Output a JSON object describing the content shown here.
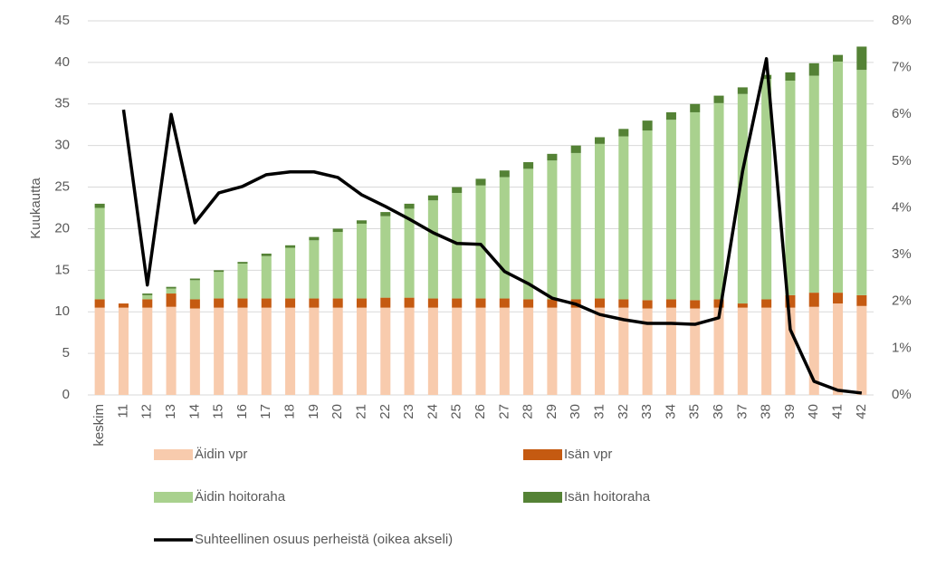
{
  "chart_data": {
    "type": "bar",
    "y_label": "Kuukautta",
    "categories": [
      "keskim",
      "11",
      "12",
      "13",
      "14",
      "15",
      "16",
      "17",
      "18",
      "19",
      "20",
      "21",
      "22",
      "23",
      "24",
      "25",
      "26",
      "27",
      "28",
      "29",
      "30",
      "31",
      "32",
      "33",
      "34",
      "35",
      "36",
      "37",
      "38",
      "39",
      "40",
      "41",
      "42"
    ],
    "series": [
      {
        "name": "Äidin vpr",
        "color": "#f8cbad",
        "values": [
          10.5,
          10.5,
          10.5,
          10.6,
          10.4,
          10.5,
          10.5,
          10.5,
          10.5,
          10.5,
          10.5,
          10.5,
          10.5,
          10.5,
          10.5,
          10.5,
          10.5,
          10.5,
          10.5,
          10.5,
          10.5,
          10.5,
          10.5,
          10.4,
          10.5,
          10.4,
          10.5,
          10.5,
          10.5,
          10.5,
          10.6,
          11.0,
          10.7
        ]
      },
      {
        "name": "Isän vpr",
        "color": "#c55a11",
        "values": [
          1.0,
          0.5,
          1.0,
          1.6,
          1.1,
          1.1,
          1.1,
          1.1,
          1.1,
          1.1,
          1.1,
          1.1,
          1.2,
          1.2,
          1.1,
          1.1,
          1.1,
          1.1,
          1.0,
          1.0,
          1.0,
          1.1,
          1.0,
          1.0,
          1.0,
          1.0,
          1.0,
          0.5,
          1.0,
          1.5,
          1.7,
          1.3,
          1.3
        ]
      },
      {
        "name": "Äidin hoitoraha",
        "color": "#a9d18e",
        "values": [
          11.0,
          0,
          0.5,
          0.6,
          2.3,
          3.2,
          4.2,
          5.1,
          6.1,
          7.0,
          8.0,
          9.0,
          9.8,
          10.7,
          11.8,
          12.7,
          13.6,
          14.6,
          15.7,
          16.7,
          17.6,
          18.6,
          19.6,
          20.4,
          21.6,
          22.6,
          23.6,
          25.2,
          26.5,
          25.8,
          26.1,
          27.8,
          27.1
        ]
      },
      {
        "name": "Isän hoitoraha",
        "color": "#548235",
        "values": [
          0.5,
          0,
          0.2,
          0.2,
          0.2,
          0.2,
          0.2,
          0.3,
          0.3,
          0.4,
          0.4,
          0.4,
          0.5,
          0.6,
          0.6,
          0.7,
          0.8,
          0.8,
          0.8,
          0.8,
          0.9,
          0.8,
          0.9,
          1.2,
          0.9,
          1.0,
          0.9,
          0.8,
          0.5,
          1.0,
          1.5,
          0.8,
          2.8
        ]
      },
      {
        "name": "Suhteellinen osuus perheistä (oikea akseli)",
        "color": "#000000",
        "type": "line",
        "axis": "y2",
        "values": [
          null,
          6.1,
          2.35,
          6.0,
          3.68,
          4.32,
          4.46,
          4.71,
          4.77,
          4.77,
          4.65,
          4.28,
          4.03,
          3.76,
          3.47,
          3.24,
          3.22,
          2.64,
          2.38,
          2.07,
          1.94,
          1.72,
          1.61,
          1.53,
          1.53,
          1.51,
          1.65,
          4.79,
          7.19,
          1.4,
          0.29,
          0.1,
          0.04
        ]
      }
    ],
    "stacked": true,
    "ylim": [
      0,
      45
    ],
    "yticks": [
      0,
      5,
      10,
      15,
      20,
      25,
      30,
      35,
      40,
      45
    ],
    "y2lim": [
      0,
      8
    ],
    "y2ticks": [
      {
        "value": 0,
        "label": "0%"
      },
      {
        "value": 1,
        "label": "1%"
      },
      {
        "value": 2,
        "label": "2%"
      },
      {
        "value": 3,
        "label": "3%"
      },
      {
        "value": 4,
        "label": "4%"
      },
      {
        "value": 5,
        "label": "5%"
      },
      {
        "value": 6,
        "label": "6%"
      },
      {
        "value": 7,
        "label": "7%"
      },
      {
        "value": 8,
        "label": "8%"
      }
    ],
    "grid": true,
    "legend": "bottom"
  }
}
